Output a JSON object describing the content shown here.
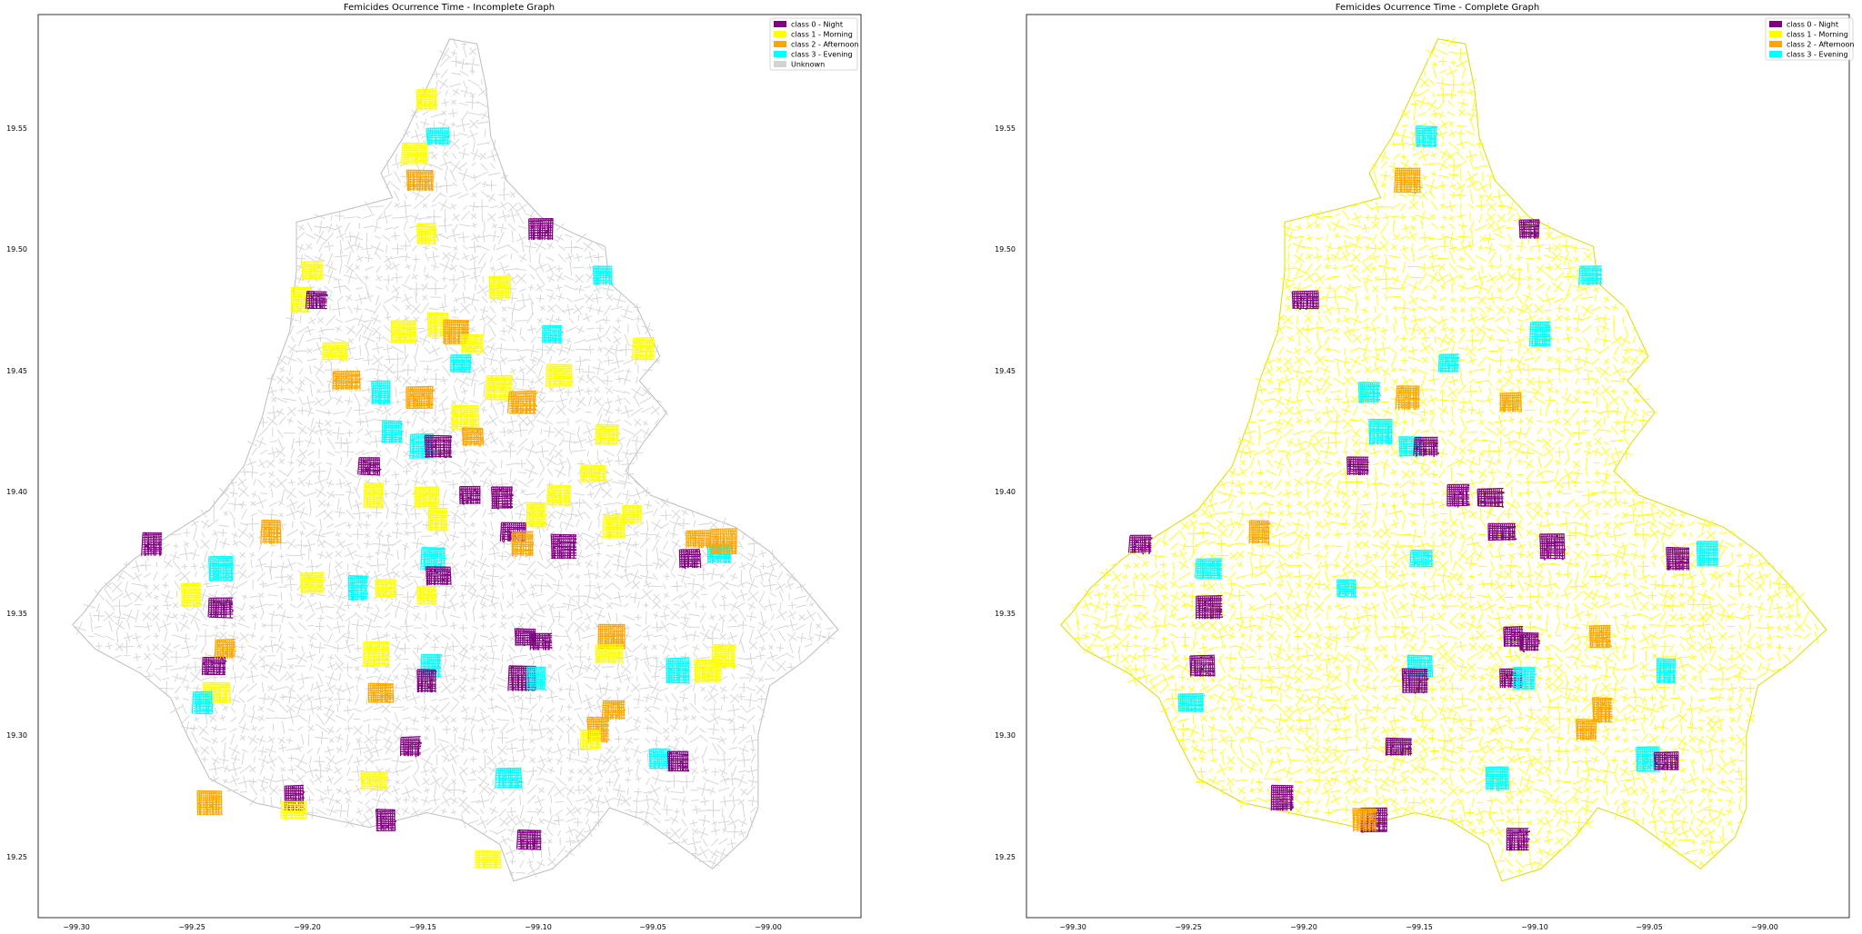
{
  "chart_data": [
    {
      "type": "scatter",
      "title": "Femicides Ocurrence Time - Incomplete Graph",
      "xlabel": "",
      "ylabel": "",
      "xlim": [
        -99.32,
        -98.96
      ],
      "ylim": [
        19.225,
        19.595
      ],
      "xticks": [
        "−99.30",
        "−99.25",
        "−99.20",
        "−99.15",
        "−99.10",
        "−99.05",
        "−99.00"
      ],
      "yticks": [
        "19.25",
        "19.30",
        "19.35",
        "19.40",
        "19.45",
        "19.50",
        "19.55"
      ],
      "grid": false,
      "legend_position": "top-right",
      "base_class": "Unknown",
      "legend": [
        {
          "label": "class 0 - Night",
          "color": "#800080"
        },
        {
          "label": "class 1 - Morning",
          "color": "#FFFF00"
        },
        {
          "label": "class 2 - Afternoon",
          "color": "#FFA500"
        },
        {
          "label": "class 3 - Evening",
          "color": "#00FFFF"
        },
        {
          "label": "Unknown",
          "color": "#D3D3D3"
        }
      ],
      "clusters": [
        {
          "cls": 1,
          "x": -99.15,
          "y": 19.56
        },
        {
          "cls": 3,
          "x": -99.145,
          "y": 19.545
        },
        {
          "cls": 1,
          "x": -99.155,
          "y": 19.538
        },
        {
          "cls": 2,
          "x": -99.153,
          "y": 19.527
        },
        {
          "cls": 1,
          "x": -99.15,
          "y": 19.505
        },
        {
          "cls": 0,
          "x": -99.1,
          "y": 19.507
        },
        {
          "cls": 3,
          "x": -99.073,
          "y": 19.488
        },
        {
          "cls": 1,
          "x": -99.2,
          "y": 19.49
        },
        {
          "cls": 1,
          "x": -99.205,
          "y": 19.478
        },
        {
          "cls": 0,
          "x": -99.198,
          "y": 19.478
        },
        {
          "cls": 1,
          "x": -99.118,
          "y": 19.483
        },
        {
          "cls": 1,
          "x": -99.19,
          "y": 19.457
        },
        {
          "cls": 1,
          "x": -99.16,
          "y": 19.465
        },
        {
          "cls": 1,
          "x": -99.145,
          "y": 19.468
        },
        {
          "cls": 2,
          "x": -99.137,
          "y": 19.465
        },
        {
          "cls": 1,
          "x": -99.13,
          "y": 19.46
        },
        {
          "cls": 3,
          "x": -99.095,
          "y": 19.464
        },
        {
          "cls": 1,
          "x": -99.055,
          "y": 19.458
        },
        {
          "cls": 2,
          "x": -99.185,
          "y": 19.445
        },
        {
          "cls": 3,
          "x": -99.17,
          "y": 19.44
        },
        {
          "cls": 3,
          "x": -99.135,
          "y": 19.452
        },
        {
          "cls": 2,
          "x": -99.153,
          "y": 19.438
        },
        {
          "cls": 1,
          "x": -99.118,
          "y": 19.442
        },
        {
          "cls": 2,
          "x": -99.108,
          "y": 19.436
        },
        {
          "cls": 1,
          "x": -99.092,
          "y": 19.447
        },
        {
          "cls": 1,
          "x": -99.133,
          "y": 19.43
        },
        {
          "cls": 3,
          "x": -99.165,
          "y": 19.424
        },
        {
          "cls": 3,
          "x": -99.152,
          "y": 19.418
        },
        {
          "cls": 0,
          "x": -99.145,
          "y": 19.418
        },
        {
          "cls": 2,
          "x": -99.13,
          "y": 19.422
        },
        {
          "cls": 1,
          "x": -99.071,
          "y": 19.423
        },
        {
          "cls": 1,
          "x": -99.077,
          "y": 19.407
        },
        {
          "cls": 0,
          "x": -99.175,
          "y": 19.41
        },
        {
          "cls": 0,
          "x": -99.131,
          "y": 19.398
        },
        {
          "cls": 0,
          "x": -99.117,
          "y": 19.397
        },
        {
          "cls": 1,
          "x": -99.15,
          "y": 19.397
        },
        {
          "cls": 1,
          "x": -99.173,
          "y": 19.398
        },
        {
          "cls": 1,
          "x": -99.092,
          "y": 19.398
        },
        {
          "cls": 1,
          "x": -99.145,
          "y": 19.388
        },
        {
          "cls": 1,
          "x": -99.102,
          "y": 19.39
        },
        {
          "cls": 1,
          "x": -99.06,
          "y": 19.39
        },
        {
          "cls": 1,
          "x": -99.068,
          "y": 19.385
        },
        {
          "cls": 0,
          "x": -99.112,
          "y": 19.383
        },
        {
          "cls": 2,
          "x": -99.108,
          "y": 19.378
        },
        {
          "cls": 0,
          "x": -99.09,
          "y": 19.377
        },
        {
          "cls": 2,
          "x": -99.218,
          "y": 19.383
        },
        {
          "cls": 0,
          "x": -99.27,
          "y": 19.378
        },
        {
          "cls": 3,
          "x": -99.24,
          "y": 19.368
        },
        {
          "cls": 3,
          "x": -99.147,
          "y": 19.372
        },
        {
          "cls": 0,
          "x": -99.145,
          "y": 19.365
        },
        {
          "cls": 1,
          "x": -99.2,
          "y": 19.362
        },
        {
          "cls": 3,
          "x": -99.18,
          "y": 19.36
        },
        {
          "cls": 1,
          "x": -99.168,
          "y": 19.36
        },
        {
          "cls": 1,
          "x": -99.15,
          "y": 19.357
        },
        {
          "cls": 1,
          "x": -99.253,
          "y": 19.357
        },
        {
          "cls": 0,
          "x": -99.24,
          "y": 19.352
        },
        {
          "cls": 0,
          "x": -99.035,
          "y": 19.372
        },
        {
          "cls": 3,
          "x": -99.022,
          "y": 19.374
        },
        {
          "cls": 2,
          "x": -99.031,
          "y": 19.38
        },
        {
          "cls": 2,
          "x": -99.02,
          "y": 19.379
        },
        {
          "cls": 0,
          "x": -99.107,
          "y": 19.34
        },
        {
          "cls": 0,
          "x": -99.1,
          "y": 19.338
        },
        {
          "cls": 0,
          "x": -99.108,
          "y": 19.323
        },
        {
          "cls": 3,
          "x": -99.102,
          "y": 19.323
        },
        {
          "cls": 2,
          "x": -99.069,
          "y": 19.34
        },
        {
          "cls": 1,
          "x": -99.07,
          "y": 19.333
        },
        {
          "cls": 3,
          "x": -99.148,
          "y": 19.328
        },
        {
          "cls": 0,
          "x": -99.15,
          "y": 19.322
        },
        {
          "cls": 1,
          "x": -99.172,
          "y": 19.333
        },
        {
          "cls": 2,
          "x": -99.17,
          "y": 19.317
        },
        {
          "cls": 3,
          "x": -99.04,
          "y": 19.326
        },
        {
          "cls": 1,
          "x": -99.027,
          "y": 19.326
        },
        {
          "cls": 1,
          "x": -99.02,
          "y": 19.332
        },
        {
          "cls": 0,
          "x": -99.243,
          "y": 19.328
        },
        {
          "cls": 1,
          "x": -99.242,
          "y": 19.317
        },
        {
          "cls": 3,
          "x": -99.248,
          "y": 19.313
        },
        {
          "cls": 2,
          "x": -99.238,
          "y": 19.335
        },
        {
          "cls": 2,
          "x": -99.068,
          "y": 19.31
        },
        {
          "cls": 2,
          "x": -99.075,
          "y": 19.302
        },
        {
          "cls": 1,
          "x": -99.078,
          "y": 19.298
        },
        {
          "cls": 0,
          "x": -99.157,
          "y": 19.295
        },
        {
          "cls": 3,
          "x": -99.048,
          "y": 19.29
        },
        {
          "cls": 0,
          "x": -99.04,
          "y": 19.289
        },
        {
          "cls": 3,
          "x": -99.114,
          "y": 19.282
        },
        {
          "cls": 1,
          "x": -99.173,
          "y": 19.281
        },
        {
          "cls": 0,
          "x": -99.208,
          "y": 19.274
        },
        {
          "cls": 1,
          "x": -99.208,
          "y": 19.269
        },
        {
          "cls": 0,
          "x": -99.168,
          "y": 19.265
        },
        {
          "cls": 2,
          "x": -99.245,
          "y": 19.272
        },
        {
          "cls": 0,
          "x": -99.105,
          "y": 19.257
        },
        {
          "cls": 1,
          "x": -99.123,
          "y": 19.249
        }
      ]
    },
    {
      "type": "scatter",
      "title": "Femicides Ocurrence Time - Complete Graph",
      "xlabel": "",
      "ylabel": "",
      "xlim": [
        -99.32,
        -98.96
      ],
      "ylim": [
        19.225,
        19.595
      ],
      "xticks": [
        "−99.30",
        "−99.25",
        "−99.20",
        "−99.15",
        "−99.10",
        "−99.05",
        "−99.00"
      ],
      "yticks": [
        "19.25",
        "19.30",
        "19.35",
        "19.40",
        "19.45",
        "19.50",
        "19.55"
      ],
      "grid": false,
      "legend_position": "top-right",
      "base_class": "class 1 - Morning",
      "legend": [
        {
          "label": "class 0 - Night",
          "color": "#800080"
        },
        {
          "label": "class 1 - Morning",
          "color": "#FFFF00"
        },
        {
          "label": "class 2 - Afternoon",
          "color": "#FFA500"
        },
        {
          "label": "class 3 - Evening",
          "color": "#00FFFF"
        }
      ],
      "clusters": [
        {
          "cls": 3,
          "x": -99.145,
          "y": 19.545
        },
        {
          "cls": 2,
          "x": -99.153,
          "y": 19.527
        },
        {
          "cls": 0,
          "x": -99.1,
          "y": 19.507
        },
        {
          "cls": 3,
          "x": -99.073,
          "y": 19.488
        },
        {
          "cls": 0,
          "x": -99.198,
          "y": 19.478
        },
        {
          "cls": 3,
          "x": -99.095,
          "y": 19.464
        },
        {
          "cls": 3,
          "x": -99.135,
          "y": 19.452
        },
        {
          "cls": 3,
          "x": -99.17,
          "y": 19.44
        },
        {
          "cls": 2,
          "x": -99.153,
          "y": 19.438
        },
        {
          "cls": 2,
          "x": -99.108,
          "y": 19.436
        },
        {
          "cls": 3,
          "x": -99.165,
          "y": 19.424
        },
        {
          "cls": 3,
          "x": -99.152,
          "y": 19.418
        },
        {
          "cls": 0,
          "x": -99.145,
          "y": 19.418
        },
        {
          "cls": 0,
          "x": -99.175,
          "y": 19.41
        },
        {
          "cls": 0,
          "x": -99.131,
          "y": 19.398
        },
        {
          "cls": 0,
          "x": -99.117,
          "y": 19.397
        },
        {
          "cls": 0,
          "x": -99.112,
          "y": 19.383
        },
        {
          "cls": 0,
          "x": -99.09,
          "y": 19.377
        },
        {
          "cls": 2,
          "x": -99.218,
          "y": 19.383
        },
        {
          "cls": 0,
          "x": -99.27,
          "y": 19.378
        },
        {
          "cls": 3,
          "x": -99.24,
          "y": 19.368
        },
        {
          "cls": 3,
          "x": -99.147,
          "y": 19.372
        },
        {
          "cls": 3,
          "x": -99.18,
          "y": 19.36
        },
        {
          "cls": 0,
          "x": -99.24,
          "y": 19.352
        },
        {
          "cls": 0,
          "x": -99.035,
          "y": 19.372
        },
        {
          "cls": 3,
          "x": -99.022,
          "y": 19.374
        },
        {
          "cls": 0,
          "x": -99.107,
          "y": 19.34
        },
        {
          "cls": 0,
          "x": -99.1,
          "y": 19.338
        },
        {
          "cls": 0,
          "x": -99.108,
          "y": 19.323
        },
        {
          "cls": 3,
          "x": -99.102,
          "y": 19.323
        },
        {
          "cls": 2,
          "x": -99.069,
          "y": 19.34
        },
        {
          "cls": 3,
          "x": -99.148,
          "y": 19.328
        },
        {
          "cls": 0,
          "x": -99.15,
          "y": 19.322
        },
        {
          "cls": 3,
          "x": -99.04,
          "y": 19.326
        },
        {
          "cls": 0,
          "x": -99.243,
          "y": 19.328
        },
        {
          "cls": 3,
          "x": -99.248,
          "y": 19.313
        },
        {
          "cls": 2,
          "x": -99.068,
          "y": 19.31
        },
        {
          "cls": 2,
          "x": -99.075,
          "y": 19.302
        },
        {
          "cls": 0,
          "x": -99.157,
          "y": 19.295
        },
        {
          "cls": 3,
          "x": -99.048,
          "y": 19.29
        },
        {
          "cls": 0,
          "x": -99.04,
          "y": 19.289
        },
        {
          "cls": 3,
          "x": -99.114,
          "y": 19.282
        },
        {
          "cls": 0,
          "x": -99.208,
          "y": 19.274
        },
        {
          "cls": 0,
          "x": -99.168,
          "y": 19.265
        },
        {
          "cls": 2,
          "x": -99.172,
          "y": 19.265
        },
        {
          "cls": 0,
          "x": -99.105,
          "y": 19.257
        }
      ]
    }
  ]
}
